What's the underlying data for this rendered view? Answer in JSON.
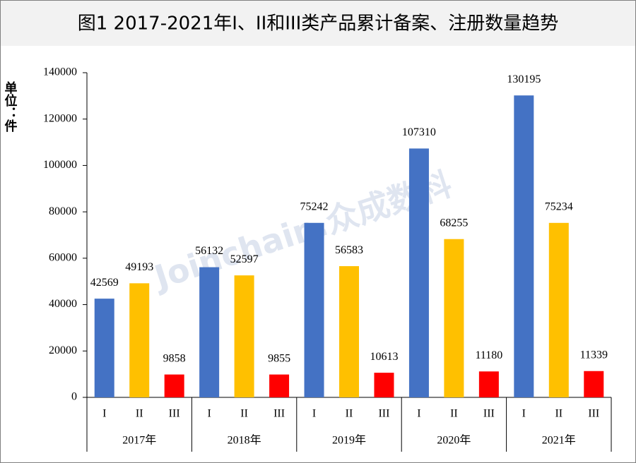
{
  "chart_data": {
    "type": "bar",
    "title": "图1  2017-2021年I、II和III类产品累计备案、注册数量趋势",
    "y_label": "单位：件",
    "watermark": "Joinchain.众成数科",
    "categories": [
      "2017年",
      "2018年",
      "2019年",
      "2020年",
      "2021年"
    ],
    "series": [
      {
        "name": "I",
        "color": "#4472c4",
        "values": [
          42569,
          56132,
          75242,
          107310,
          130195
        ]
      },
      {
        "name": "II",
        "color": "#ffc000",
        "values": [
          49193,
          52597,
          56583,
          68255,
          75234
        ]
      },
      {
        "name": "III",
        "color": "#ff0000",
        "values": [
          9858,
          9855,
          10613,
          11180,
          11339
        ]
      }
    ],
    "ylim": [
      0,
      140000
    ],
    "yticks": [
      0,
      20000,
      40000,
      60000,
      80000,
      100000,
      120000,
      140000
    ],
    "grid": false
  }
}
